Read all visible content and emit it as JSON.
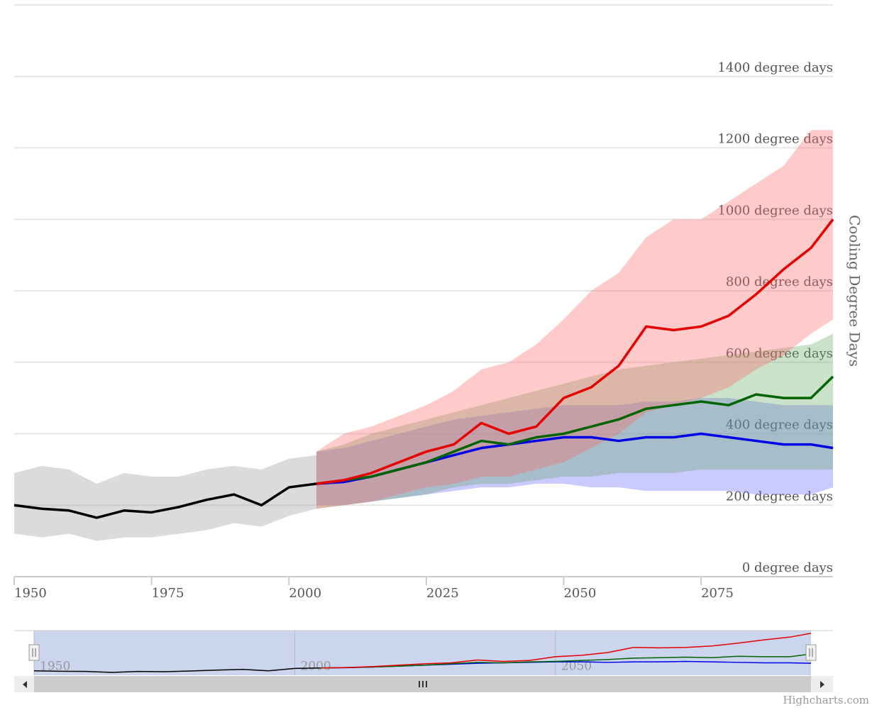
{
  "chart_data": {
    "type": "line",
    "y_axis_title": "Cooling Degree Days",
    "credit": "Highcharts.com",
    "xlim": [
      1950,
      2099
    ],
    "xticks": [
      1950,
      1975,
      2000,
      2025,
      2050,
      2075
    ],
    "ylim": [
      0,
      1600
    ],
    "yticks": [
      {
        "value": 0,
        "label": "0 degree days"
      },
      {
        "value": 200,
        "label": "200 degree days"
      },
      {
        "value": 400,
        "label": "400 degree days"
      },
      {
        "value": 600,
        "label": "600 degree days"
      },
      {
        "value": 800,
        "label": "800 degree days"
      },
      {
        "value": 1000,
        "label": "1000 degree days"
      },
      {
        "value": 1200,
        "label": "1200 degree days"
      },
      {
        "value": 1400,
        "label": "1400 degree days"
      }
    ],
    "grid": true,
    "series": [
      {
        "color": "#000000",
        "range_color": "#999999",
        "x": [
          1950,
          1955,
          1960,
          1965,
          1970,
          1975,
          1980,
          1985,
          1990,
          1995,
          2000,
          2005
        ],
        "values": [
          200,
          190,
          185,
          165,
          185,
          180,
          195,
          215,
          230,
          200,
          250,
          260
        ],
        "low": [
          120,
          110,
          120,
          100,
          110,
          110,
          120,
          130,
          150,
          140,
          170,
          190
        ],
        "high": [
          290,
          310,
          300,
          260,
          290,
          280,
          280,
          300,
          310,
          300,
          330,
          340
        ]
      },
      {
        "color": "#0000e6",
        "range_color": "#6666ff",
        "x": [
          2005,
          2010,
          2015,
          2020,
          2025,
          2030,
          2035,
          2040,
          2045,
          2050,
          2055,
          2060,
          2065,
          2070,
          2075,
          2080,
          2085,
          2090,
          2095,
          2099
        ],
        "values": [
          260,
          265,
          280,
          300,
          320,
          340,
          360,
          370,
          380,
          390,
          390,
          380,
          390,
          390,
          400,
          390,
          380,
          370,
          370,
          360
        ],
        "low": [
          200,
          200,
          210,
          220,
          230,
          240,
          250,
          250,
          260,
          260,
          250,
          250,
          240,
          240,
          240,
          240,
          230,
          230,
          230,
          250
        ],
        "high": [
          350,
          360,
          380,
          400,
          420,
          440,
          450,
          460,
          470,
          480,
          480,
          480,
          490,
          490,
          500,
          500,
          490,
          480,
          480,
          480
        ]
      },
      {
        "color": "#006400",
        "range_color": "#66aa66",
        "x": [
          2005,
          2010,
          2015,
          2020,
          2025,
          2030,
          2035,
          2040,
          2045,
          2050,
          2055,
          2060,
          2065,
          2070,
          2075,
          2080,
          2085,
          2090,
          2095,
          2099
        ],
        "values": [
          260,
          270,
          280,
          300,
          320,
          350,
          380,
          370,
          390,
          400,
          420,
          440,
          470,
          480,
          490,
          480,
          510,
          500,
          500,
          560
        ],
        "low": [
          190,
          200,
          210,
          220,
          230,
          250,
          260,
          260,
          270,
          280,
          280,
          290,
          290,
          290,
          300,
          300,
          300,
          300,
          300,
          300
        ],
        "high": [
          350,
          370,
          400,
          420,
          440,
          460,
          480,
          500,
          520,
          540,
          560,
          580,
          590,
          600,
          610,
          620,
          630,
          640,
          650,
          680
        ]
      },
      {
        "color": "#e60000",
        "range_color": "#ff6666",
        "x": [
          2005,
          2010,
          2015,
          2020,
          2025,
          2030,
          2035,
          2040,
          2045,
          2050,
          2055,
          2060,
          2065,
          2070,
          2075,
          2080,
          2085,
          2090,
          2095,
          2099
        ],
        "values": [
          260,
          270,
          290,
          320,
          350,
          370,
          430,
          400,
          420,
          500,
          530,
          590,
          700,
          690,
          700,
          730,
          790,
          860,
          920,
          1000
        ],
        "low": [
          190,
          200,
          210,
          230,
          250,
          260,
          280,
          280,
          300,
          320,
          360,
          400,
          460,
          480,
          500,
          530,
          580,
          620,
          680,
          720
        ],
        "high": [
          350,
          400,
          420,
          450,
          480,
          520,
          580,
          600,
          650,
          720,
          800,
          850,
          950,
          1000,
          1000,
          1050,
          1100,
          1150,
          1250,
          1250
        ]
      }
    ],
    "navigator": {
      "xticks": [
        1950,
        2000,
        2050
      ]
    }
  }
}
